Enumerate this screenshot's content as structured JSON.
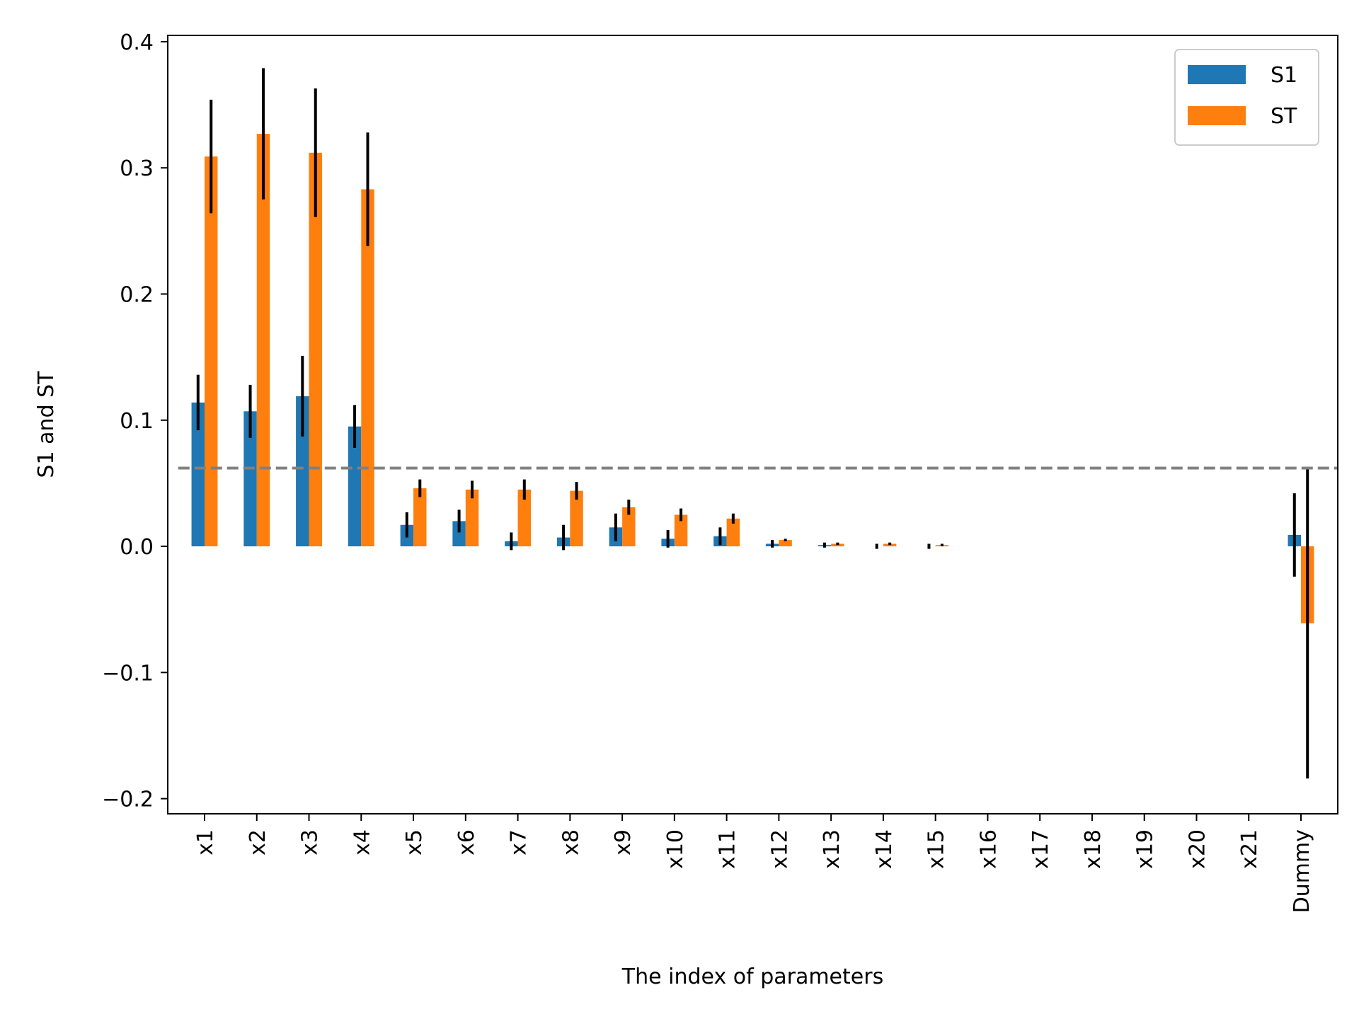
{
  "chart_data": {
    "type": "bar",
    "xlabel": "The index of parameters",
    "ylabel": "S1 and ST",
    "ylim": [
      -0.212,
      0.405
    ],
    "yticks": [
      -0.2,
      -0.1,
      0.0,
      0.1,
      0.2,
      0.3,
      0.4
    ],
    "ytick_labels": [
      "−0.2",
      "−0.1",
      "0.0",
      "0.1",
      "0.2",
      "0.3",
      "0.4"
    ],
    "categories": [
      "x1",
      "x2",
      "x3",
      "x4",
      "x5",
      "x6",
      "x7",
      "x8",
      "x9",
      "x10",
      "x11",
      "x12",
      "x13",
      "x14",
      "x15",
      "x16",
      "x17",
      "x18",
      "x19",
      "x20",
      "x21",
      "Dummy"
    ],
    "series": [
      {
        "name": "S1",
        "color": "#1f77b4",
        "values": [
          0.114,
          0.107,
          0.119,
          0.095,
          0.017,
          0.02,
          0.004,
          0.007,
          0.015,
          0.006,
          0.008,
          0.002,
          0.001,
          0.0,
          0.0,
          0.0,
          0.0,
          0.0,
          0.0,
          0.0,
          0.0,
          0.009
        ],
        "errors": [
          0.022,
          0.021,
          0.032,
          0.017,
          0.01,
          0.009,
          0.007,
          0.01,
          0.011,
          0.007,
          0.007,
          0.003,
          0.002,
          0.002,
          0.002,
          0.0,
          0.0,
          0.0,
          0.0,
          0.0,
          0.0,
          0.033
        ]
      },
      {
        "name": "ST",
        "color": "#ff7f0e",
        "values": [
          0.309,
          0.327,
          0.312,
          0.283,
          0.046,
          0.045,
          0.045,
          0.044,
          0.031,
          0.025,
          0.022,
          0.005,
          0.002,
          0.002,
          0.001,
          0.0,
          0.0,
          0.0,
          0.0,
          0.0,
          0.0,
          -0.061
        ],
        "errors": [
          0.045,
          0.052,
          0.051,
          0.045,
          0.007,
          0.007,
          0.008,
          0.007,
          0.006,
          0.005,
          0.004,
          0.001,
          0.001,
          0.001,
          0.001,
          0.0,
          0.0,
          0.0,
          0.0,
          0.0,
          0.0,
          0.123
        ]
      }
    ],
    "reference_line": {
      "y": 0.062,
      "color": "#808080",
      "style": "dashed"
    },
    "legend": {
      "placement": "top-right",
      "entries": [
        "S1",
        "ST"
      ]
    },
    "grid": false
  }
}
